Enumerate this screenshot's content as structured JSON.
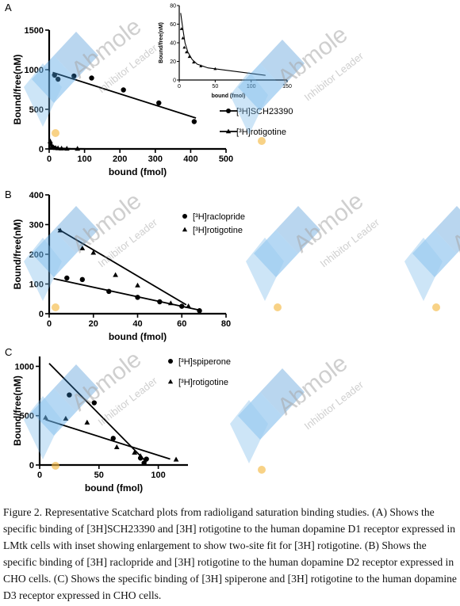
{
  "watermark": {
    "brand": "Abmole",
    "tagline": "Inhibitor Leader"
  },
  "caption": "Figure 2. Representative Scatchard plots from radioligand saturation binding studies. (A) Shows the specific binding of [3H]SCH23390 and [3H] rotigotine to the human dopamine D1 receptor expressed in LMtk cells with inset showing enlargement to show two-site fit for [3H] rotigotine. (B) Shows the specific binding of [3H] raclopride and [3H] rotigotine to the human dopamine D2 receptor expressed in CHO cells. (C) Shows the specific binding of [3H] spiperone and [3H] rotigotine to the human dopamine D3 receptor expressed in CHO cells.",
  "chart_data": [
    {
      "panel": "A",
      "type": "scatter",
      "xlabel": "bound (fmol)",
      "ylabel": "Bound/free(nM)",
      "xlim": [
        0,
        500
      ],
      "ylim": [
        0,
        1500
      ],
      "xticks": [
        0,
        100,
        200,
        300,
        400,
        500
      ],
      "yticks": [
        0,
        500,
        1000,
        1500
      ],
      "legend_position": "right",
      "series": [
        {
          "name": "SCH23390",
          "legend_label": "[³H]SCH23390",
          "marker": "circle",
          "points": [
            [
              15,
              930
            ],
            [
              25,
              880
            ],
            [
              70,
              920
            ],
            [
              120,
              895
            ],
            [
              210,
              745
            ],
            [
              310,
              580
            ],
            [
              410,
              345
            ]
          ],
          "fit": [
            [
              10,
              965
            ],
            [
              415,
              390
            ]
          ]
        },
        {
          "name": "rotigotine",
          "legend_label": "[³H]rotigotine",
          "marker": "triangle",
          "points": [
            [
              3,
              95
            ],
            [
              5,
              60
            ],
            [
              8,
              35
            ],
            [
              12,
              20
            ],
            [
              18,
              12
            ],
            [
              25,
              8
            ],
            [
              35,
              5
            ],
            [
              50,
              3
            ],
            [
              80,
              2
            ]
          ],
          "fit": [
            [
              0,
              110
            ],
            [
              10,
              40
            ],
            [
              25,
              10
            ],
            [
              60,
              3
            ],
            [
              130,
              0
            ]
          ]
        }
      ],
      "inset": {
        "xlabel": "bound (fmol)",
        "ylabel": "Bound/free(nM)",
        "xlim": [
          0,
          150
        ],
        "ylim": [
          0,
          80
        ],
        "xticks": [
          0,
          50,
          100,
          150
        ],
        "yticks": [
          0,
          20,
          40,
          60,
          80
        ],
        "points": [
          [
            3,
            55
          ],
          [
            5,
            45
          ],
          [
            7,
            35
          ],
          [
            10,
            30
          ],
          [
            14,
            25
          ],
          [
            20,
            19
          ],
          [
            30,
            15
          ],
          [
            50,
            12
          ]
        ],
        "fit": [
          [
            2,
            72
          ],
          [
            5,
            55
          ],
          [
            8,
            40
          ],
          [
            12,
            30
          ],
          [
            18,
            22
          ],
          [
            25,
            17
          ],
          [
            40,
            13
          ],
          [
            60,
            11
          ],
          [
            90,
            8
          ],
          [
            120,
            5
          ]
        ]
      }
    },
    {
      "panel": "B",
      "type": "scatter",
      "xlabel": "bound (fmol)",
      "ylabel": "Bound/free(nM)",
      "xlim": [
        0,
        80
      ],
      "ylim": [
        0,
        400
      ],
      "xticks": [
        0,
        20,
        40,
        60,
        80
      ],
      "yticks": [
        0,
        100,
        200,
        300,
        400
      ],
      "legend_position": "top-right",
      "series": [
        {
          "name": "raclopride",
          "legend_label": "[³H]raclopride",
          "marker": "circle",
          "points": [
            [
              8,
              120
            ],
            [
              15,
              115
            ],
            [
              27,
              75
            ],
            [
              40,
              55
            ],
            [
              50,
              40
            ],
            [
              60,
              25
            ],
            [
              68,
              10
            ]
          ],
          "fit": [
            [
              2,
              118
            ],
            [
              68,
              12
            ]
          ]
        },
        {
          "name": "rotigotine",
          "legend_label": "[³H]rotigotine",
          "marker": "triangle",
          "points": [
            [
              5,
              280
            ],
            [
              15,
              220
            ],
            [
              20,
              205
            ],
            [
              30,
              130
            ],
            [
              40,
              95
            ],
            [
              55,
              35
            ],
            [
              63,
              25
            ]
          ],
          "fit": [
            [
              4,
              285
            ],
            [
              62,
              30
            ]
          ]
        }
      ]
    },
    {
      "panel": "C",
      "type": "scatter",
      "xlabel": "bound (fmol)",
      "ylabel": "Bound/free(nM)",
      "xlim": [
        0,
        125
      ],
      "ylim": [
        0,
        1100
      ],
      "xticks": [
        0,
        50,
        100
      ],
      "yticks": [
        0,
        500,
        1000
      ],
      "legend_position": "top-right",
      "series": [
        {
          "name": "spiperone",
          "legend_label": "[³H]spiperone",
          "marker": "circle",
          "points": [
            [
              25,
              710
            ],
            [
              46,
              630
            ],
            [
              62,
              270
            ],
            [
              85,
              70
            ],
            [
              88,
              20
            ],
            [
              90,
              60
            ]
          ],
          "fit": [
            [
              8,
              1030
            ],
            [
              90,
              30
            ]
          ]
        },
        {
          "name": "rotigotine",
          "legend_label": "[³H]rotigotine",
          "marker": "triangle",
          "points": [
            [
              5,
              480
            ],
            [
              22,
              470
            ],
            [
              40,
              430
            ],
            [
              65,
              180
            ],
            [
              80,
              125
            ],
            [
              85,
              90
            ],
            [
              115,
              55
            ]
          ],
          "fit": [
            [
              5,
              460
            ],
            [
              110,
              60
            ]
          ]
        }
      ]
    }
  ]
}
